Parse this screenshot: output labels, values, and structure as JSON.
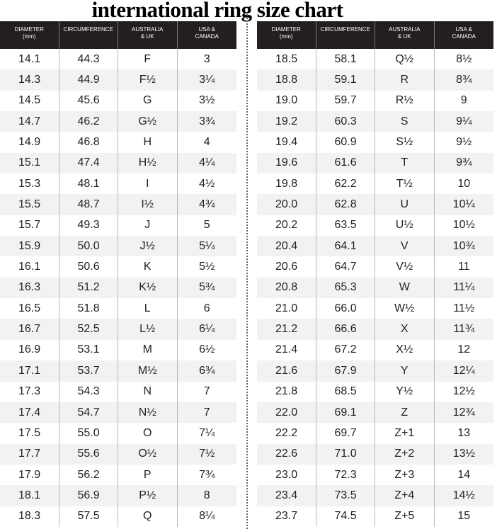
{
  "title": "international ring size chart",
  "headers": [
    "DIAMETER\n(mm)",
    "CIRCUMFERENCE",
    "AUSTRALIA\n& UK",
    "USA &\nCANADA"
  ],
  "colors": {
    "header_bg": "#231f20",
    "alt_row": "#f1f2f2"
  },
  "left_rows": [
    [
      "14.1",
      "44.3",
      "F",
      "3"
    ],
    [
      "14.3",
      "44.9",
      "F½",
      "3¼"
    ],
    [
      "14.5",
      "45.6",
      "G",
      "3½"
    ],
    [
      "14.7",
      "46.2",
      "G½",
      "3¾"
    ],
    [
      "14.9",
      "46.8",
      "H",
      "4"
    ],
    [
      "15.1",
      "47.4",
      "H½",
      "4¼"
    ],
    [
      "15.3",
      "48.1",
      "I",
      "4½"
    ],
    [
      "15.5",
      "48.7",
      "I½",
      "4¾"
    ],
    [
      "15.7",
      "49.3",
      "J",
      "5"
    ],
    [
      "15.9",
      "50.0",
      "J½",
      "5¼"
    ],
    [
      "16.1",
      "50.6",
      "K",
      "5½"
    ],
    [
      "16.3",
      "51.2",
      "K½",
      "5¾"
    ],
    [
      "16.5",
      "51.8",
      "L",
      "6"
    ],
    [
      "16.7",
      "52.5",
      "L½",
      "6¼"
    ],
    [
      "16.9",
      "53.1",
      "M",
      "6½"
    ],
    [
      "17.1",
      "53.7",
      "M½",
      "6¾"
    ],
    [
      "17.3",
      "54.3",
      "N",
      "7"
    ],
    [
      "17.4",
      "54.7",
      "N½",
      "7"
    ],
    [
      "17.5",
      "55.0",
      "O",
      "7¼"
    ],
    [
      "17.7",
      "55.6",
      "O½",
      "7½"
    ],
    [
      "17.9",
      "56.2",
      "P",
      "7¾"
    ],
    [
      "18.1",
      "56.9",
      "P½",
      "8"
    ],
    [
      "18.3",
      "57.5",
      "Q",
      "8¼"
    ]
  ],
  "right_rows": [
    [
      "18.5",
      "58.1",
      "Q½",
      "8½"
    ],
    [
      "18.8",
      "59.1",
      "R",
      "8¾"
    ],
    [
      "19.0",
      "59.7",
      "R½",
      "9"
    ],
    [
      "19.2",
      "60.3",
      "S",
      "9¼"
    ],
    [
      "19.4",
      "60.9",
      "S½",
      "9½"
    ],
    [
      "19.6",
      "61.6",
      "T",
      "9¾"
    ],
    [
      "19.8",
      "62.2",
      "T½",
      "10"
    ],
    [
      "20.0",
      "62.8",
      "U",
      "10¼"
    ],
    [
      "20.2",
      "63.5",
      "U½",
      "10½"
    ],
    [
      "20.4",
      "64.1",
      "V",
      "10¾"
    ],
    [
      "20.6",
      "64.7",
      "V½",
      "11"
    ],
    [
      "20.8",
      "65.3",
      "W",
      "11¼"
    ],
    [
      "21.0",
      "66.0",
      "W½",
      "11½"
    ],
    [
      "21.2",
      "66.6",
      "X",
      "11¾"
    ],
    [
      "21.4",
      "67.2",
      "X½",
      "12"
    ],
    [
      "21.6",
      "67.9",
      "Y",
      "12¼"
    ],
    [
      "21.8",
      "68.5",
      "Y½",
      "12½"
    ],
    [
      "22.0",
      "69.1",
      "Z",
      "12¾"
    ],
    [
      "22.2",
      "69.7",
      "Z+1",
      "13"
    ],
    [
      "22.6",
      "71.0",
      "Z+2",
      "13½"
    ],
    [
      "23.0",
      "72.3",
      "Z+3",
      "14"
    ],
    [
      "23.4",
      "73.5",
      "Z+4",
      "14½"
    ],
    [
      "23.7",
      "74.5",
      "Z+5",
      "15"
    ]
  ]
}
